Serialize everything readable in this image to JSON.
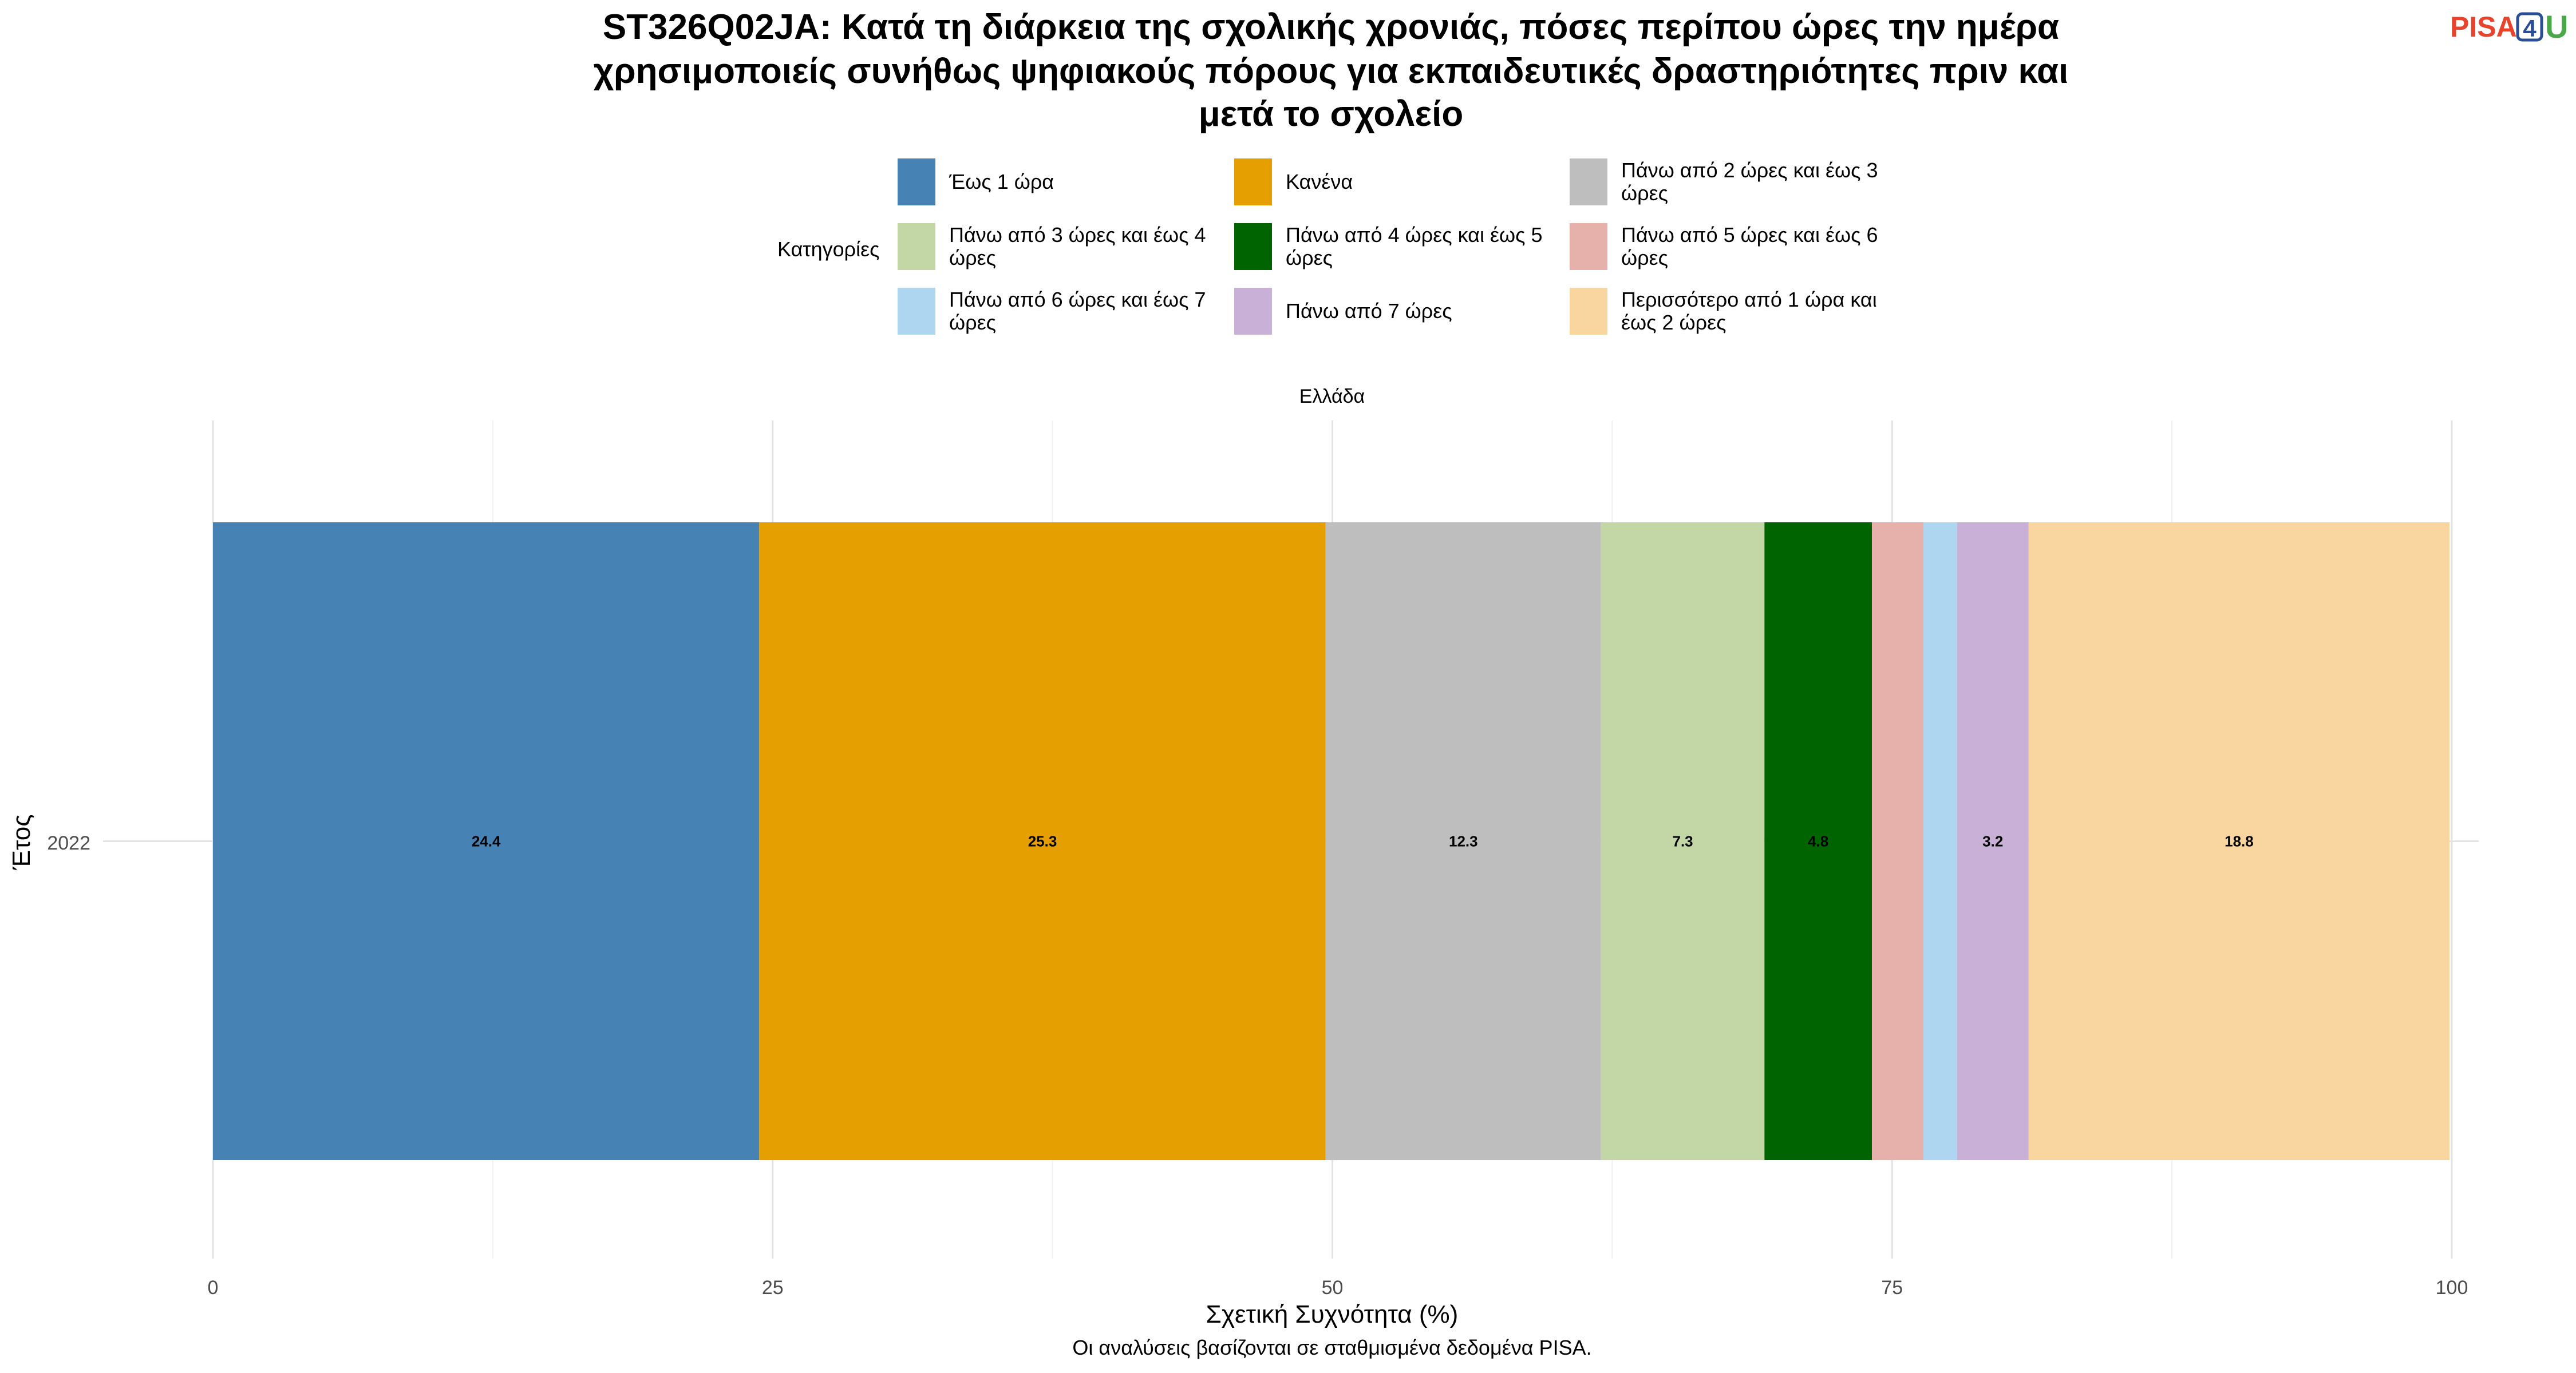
{
  "logo": {
    "text_a": "PISA",
    "text_b": "4",
    "text_c": "U",
    "color_a": "#e8432b",
    "color_b": "#2a4e96",
    "color_c": "#4aa84a"
  },
  "chart_data": {
    "type": "bar",
    "orientation": "horizontal-stacked",
    "title_lines": [
      "ST326Q02JA: Κατά τη διάρκεια της σχολικής χρονιάς, πόσες περίπου ώρες την ημέρα",
      "χρησιμοποιείς συνήθως ψηφιακούς πόρους για εκπαιδευτικές δραστηριότητες πριν και",
      "μετά το σχολείο"
    ],
    "facet": "Ελλάδα",
    "legend_title": "Κατηγορίες",
    "legend_position": "top",
    "xlabel": "Σχετική Συχνότητα (%)",
    "ylabel": "Έτος",
    "caption": "Οι αναλύσεις βασίζονται σε σταθμισμένα δεδομένα PISA.",
    "xlim": [
      0,
      100
    ],
    "x_ticks": [
      "0",
      "25",
      "50",
      "75",
      "100"
    ],
    "categories": [
      "2022"
    ],
    "grid": true,
    "series": [
      {
        "name": "Έως 1 ώρα",
        "legend_lines": [
          "Έως 1 ώρα"
        ],
        "value": 24.4,
        "label": "24.4",
        "color": "#4682b4"
      },
      {
        "name": "Κανένα",
        "legend_lines": [
          "Κανένα"
        ],
        "value": 25.3,
        "label": "25.3",
        "color": "#e69f00"
      },
      {
        "name": "Πάνω από 2 ώρες και έως 3 ώρες",
        "legend_lines": [
          "Πάνω από 2 ώρες και έως 3",
          "ώρες"
        ],
        "value": 12.3,
        "label": "12.3",
        "color": "#bebebe"
      },
      {
        "name": "Πάνω από 3 ώρες και έως 4 ώρες",
        "legend_lines": [
          "Πάνω από 3 ώρες και έως 4",
          "ώρες"
        ],
        "value": 7.3,
        "label": "7.3",
        "color": "#c3d6a6"
      },
      {
        "name": "Πάνω από 4 ώρες και έως 5 ώρες",
        "legend_lines": [
          "Πάνω από 4 ώρες και έως 5",
          "ώρες"
        ],
        "value": 4.8,
        "label": "4.8",
        "color": "#006400"
      },
      {
        "name": "Πάνω από 5 ώρες και έως 6 ώρες",
        "legend_lines": [
          "Πάνω από 5 ώρες και έως 6",
          "ώρες"
        ],
        "value": 2.3,
        "label": "",
        "color": "#e5b1aa"
      },
      {
        "name": "Πάνω από 6 ώρες και έως 7 ώρες",
        "legend_lines": [
          "Πάνω από 6 ώρες και έως 7",
          "ώρες"
        ],
        "value": 1.5,
        "label": "",
        "color": "#aed6f1"
      },
      {
        "name": "Πάνω από 7 ώρες",
        "legend_lines": [
          "Πάνω από 7 ώρες"
        ],
        "value": 3.2,
        "label": "3.2",
        "color": "#c8b0d6"
      },
      {
        "name": "Περισσότερο από 1 ώρα και έως 2 ώρες",
        "legend_lines": [
          "Περισσότερο από 1 ώρα και",
          "έως 2 ώρες"
        ],
        "value": 18.8,
        "label": "18.8",
        "color": "#f9d5a0"
      }
    ]
  }
}
